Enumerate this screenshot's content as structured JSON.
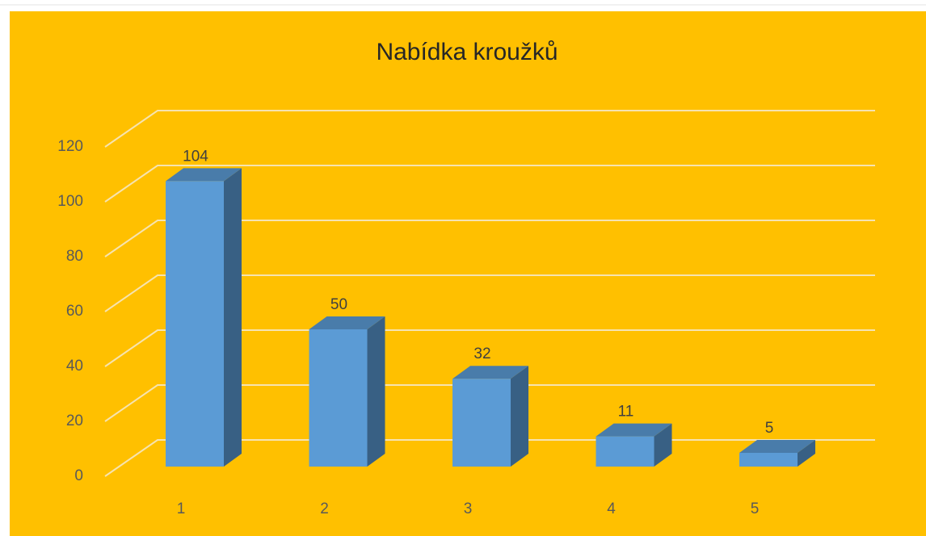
{
  "chart_data": {
    "type": "bar3d",
    "title": "Nabídka kroužků",
    "categories": [
      "1",
      "2",
      "3",
      "4",
      "5"
    ],
    "values": [
      104,
      50,
      32,
      11,
      5
    ],
    "color": "#5b9bd5",
    "ylim": [
      0,
      120
    ],
    "yticks": [
      0,
      20,
      40,
      60,
      80,
      100,
      120
    ],
    "grid": true
  }
}
